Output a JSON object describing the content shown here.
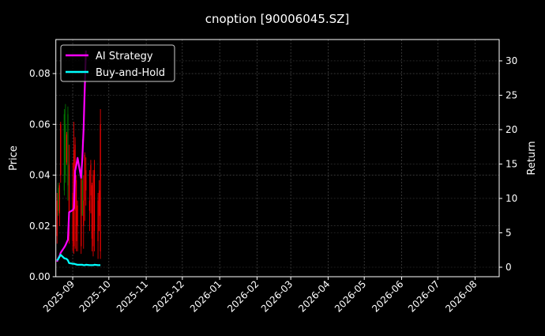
{
  "chart_data": {
    "type": "line",
    "title": "cnoption [90006045.SZ]",
    "ylabel_left": "Price",
    "ylabel_right": "Return",
    "xlabel": "",
    "xlim": [
      "2025-08-18",
      "2026-08-21"
    ],
    "ylim_left": [
      0,
      0.0934
    ],
    "ylim_right": [
      -1.38,
      33.1
    ],
    "grid": true,
    "legend_placement": "top-left",
    "x_ticks": [
      "2025-09",
      "2025-10",
      "2025-11",
      "2025-12",
      "2026-01",
      "2026-02",
      "2026-03",
      "2026-04",
      "2026-05",
      "2026-06",
      "2026-07",
      "2026-08"
    ],
    "y_ticks_left": [
      "0.00",
      "0.02",
      "0.04",
      "0.06",
      "0.08"
    ],
    "y_ticks_right": [
      "0",
      "5",
      "10",
      "15",
      "20",
      "25",
      "30"
    ],
    "colors": {
      "background": "#000000",
      "up": "#008000",
      "down": "#ff0000",
      "strategy": "#ff00ff",
      "buyhold": "#00ffff"
    },
    "candles": {
      "dates": [
        "2025-08-19",
        "2025-08-20",
        "2025-08-21",
        "2025-08-22",
        "2025-08-25",
        "2025-08-26",
        "2025-08-27",
        "2025-08-28",
        "2025-08-29",
        "2025-09-01",
        "2025-09-02",
        "2025-09-03",
        "2025-09-04",
        "2025-09-05",
        "2025-09-08",
        "2025-09-09",
        "2025-09-10",
        "2025-09-11",
        "2025-09-12",
        "2025-09-15",
        "2025-09-16",
        "2025-09-17",
        "2025-09-18",
        "2025-09-19",
        "2025-09-22",
        "2025-09-23",
        "2025-09-24"
      ],
      "open": [
        0.03,
        0.026,
        0.036,
        0.06,
        0.034,
        0.04,
        0.056,
        0.036,
        0.044,
        0.033,
        0.05,
        0.052,
        0.038,
        0.028,
        0.04,
        0.024,
        0.03,
        0.048,
        0.042,
        0.03,
        0.044,
        0.036,
        0.04,
        0.042,
        0.03,
        0.034,
        0.06
      ],
      "close": [
        0.016,
        0.035,
        0.025,
        0.04,
        0.064,
        0.06,
        0.045,
        0.064,
        0.016,
        0.014,
        0.012,
        0.026,
        0.014,
        0.02,
        0.012,
        0.038,
        0.02,
        0.03,
        0.034,
        0.026,
        0.032,
        0.015,
        0.012,
        0.018,
        0.014,
        0.024,
        0.01
      ],
      "high": [
        0.033,
        0.037,
        0.037,
        0.061,
        0.066,
        0.068,
        0.057,
        0.067,
        0.052,
        0.045,
        0.061,
        0.055,
        0.04,
        0.03,
        0.04,
        0.054,
        0.04,
        0.049,
        0.047,
        0.042,
        0.046,
        0.037,
        0.042,
        0.046,
        0.033,
        0.038,
        0.066
      ],
      "low": [
        0.013,
        0.024,
        0.02,
        0.037,
        0.032,
        0.037,
        0.044,
        0.03,
        0.013,
        0.01,
        0.009,
        0.011,
        0.01,
        0.01,
        0.009,
        0.025,
        0.011,
        0.022,
        0.028,
        0.018,
        0.025,
        0.01,
        0.008,
        0.01,
        0.007,
        0.018,
        0.007
      ]
    },
    "series": [
      {
        "name": "AI Strategy",
        "axis": "right",
        "values": [
          0.8,
          1.3,
          1.6,
          2.1,
          2.9,
          3.2,
          3.6,
          4.0,
          8.0,
          8.3,
          8.6,
          14.0,
          14.8,
          15.9,
          13.0,
          16.0,
          20.0,
          26.0,
          31.5,
          null,
          null,
          null,
          null,
          null,
          null,
          null,
          null
        ]
      },
      {
        "name": "Buy-and-Hold",
        "axis": "right",
        "values": [
          1.0,
          1.2,
          1.5,
          1.8,
          1.3,
          1.25,
          1.2,
          1.0,
          0.6,
          0.5,
          0.5,
          0.45,
          0.4,
          0.35,
          0.35,
          0.35,
          0.3,
          0.3,
          0.35,
          0.3,
          0.3,
          0.3,
          0.3,
          0.35,
          0.3,
          0.3,
          0.3
        ]
      }
    ]
  }
}
